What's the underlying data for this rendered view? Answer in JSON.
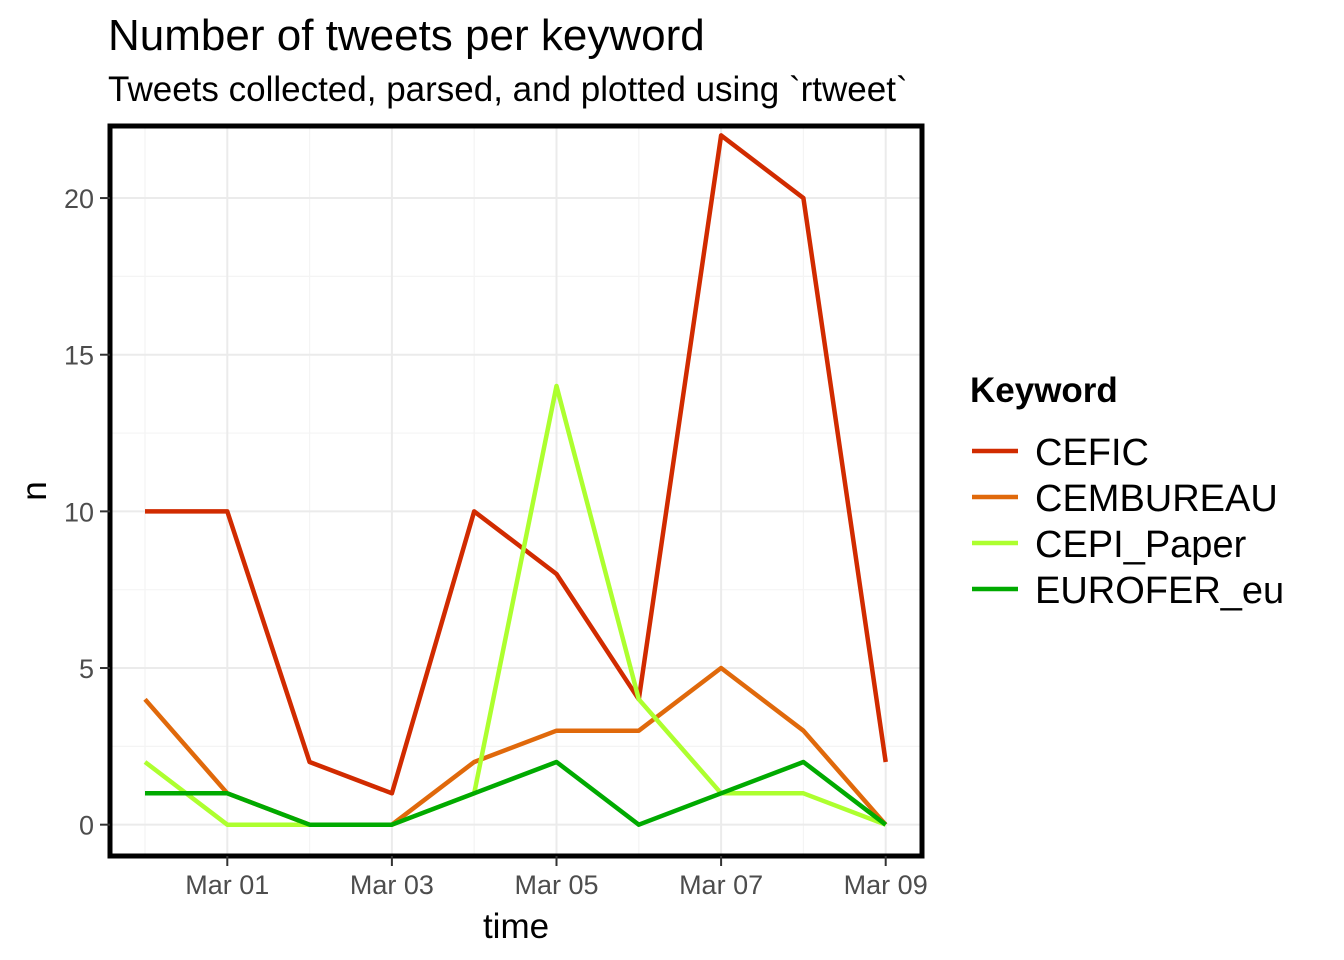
{
  "chart_data": {
    "type": "line",
    "title": "Number of tweets per keyword",
    "subtitle": "Tweets collected, parsed, and plotted using `rtweet`",
    "xlabel": "time",
    "ylabel": "n",
    "x": [
      "Feb 29",
      "Mar 01",
      "Mar 02",
      "Mar 03",
      "Mar 04",
      "Mar 05",
      "Mar 06",
      "Mar 07",
      "Mar 08",
      "Mar 09"
    ],
    "x_ticks": [
      "Mar 01",
      "Mar 03",
      "Mar 05",
      "Mar 07",
      "Mar 09"
    ],
    "y_ticks": [
      0,
      5,
      10,
      15,
      20
    ],
    "ylim": [
      -1,
      22.3
    ],
    "grid": true,
    "legend": {
      "title": "Keyword",
      "position": "right"
    },
    "series": [
      {
        "name": "CEFIC",
        "color": "#d12b00",
        "values": [
          10,
          10,
          2,
          1,
          10,
          8,
          4,
          22,
          20,
          2
        ]
      },
      {
        "name": "CEMBUREAU",
        "color": "#e0690b",
        "values": [
          4,
          1,
          0,
          0,
          2,
          3,
          3,
          5,
          3,
          0
        ]
      },
      {
        "name": "CEPI_Paper",
        "color": "#adff2f",
        "values": [
          2,
          0,
          0,
          0,
          1,
          14,
          4,
          1,
          1,
          0
        ]
      },
      {
        "name": "EUROFER_eu",
        "color": "#00aa00",
        "values": [
          1,
          1,
          0,
          0,
          1,
          2,
          0,
          1,
          2,
          0
        ]
      }
    ]
  }
}
